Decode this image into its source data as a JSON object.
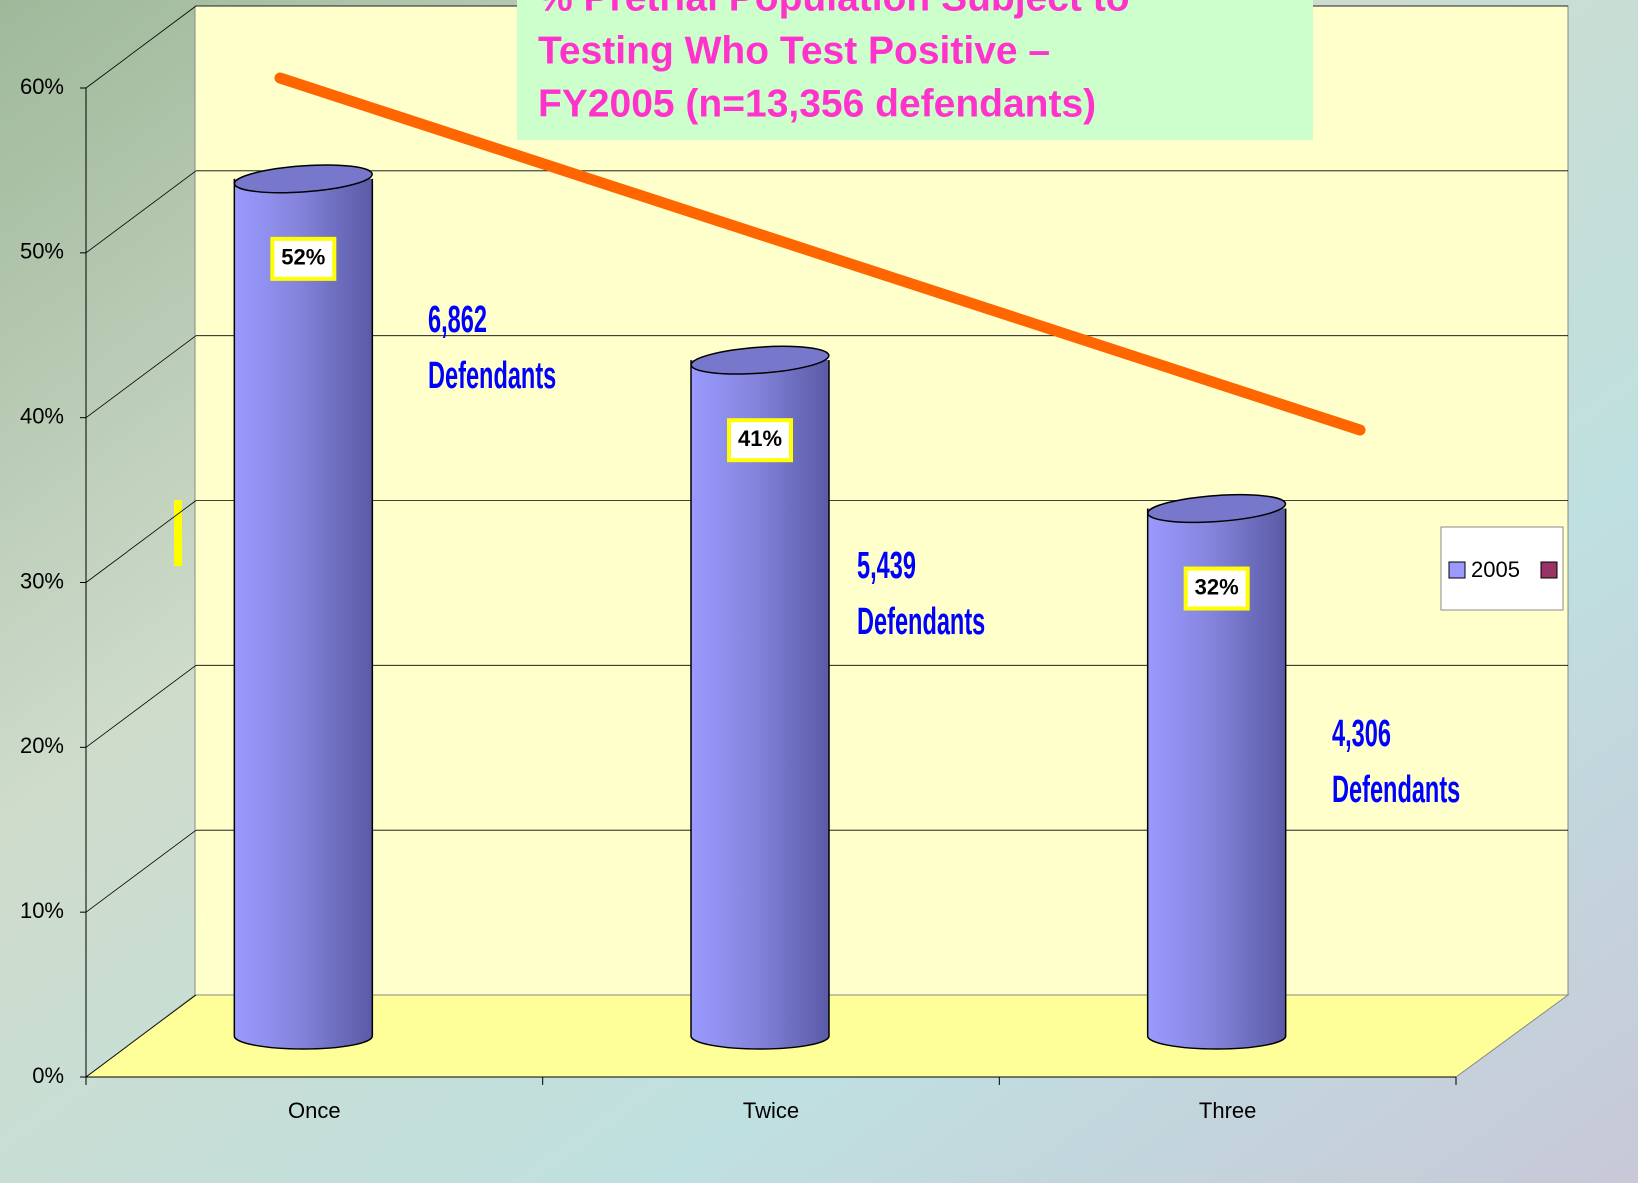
{
  "chart_data": {
    "type": "bar",
    "title": [
      "% Pretrial Population Subject to",
      "Testing Who Test Positive –",
      "FY2005 (n=13,356 defendants)"
    ],
    "categories": [
      "Once",
      "Twice",
      "Three"
    ],
    "series": [
      {
        "name": "2005",
        "color": "#9999ff",
        "values": [
          52,
          41,
          32
        ],
        "value_labels": [
          "52%",
          "41%",
          "32%"
        ]
      }
    ],
    "ylim": [
      0,
      60
    ],
    "yticks": [
      {
        "value": 0,
        "label": "0%"
      },
      {
        "value": 10,
        "label": "10%"
      },
      {
        "value": 20,
        "label": "20%"
      },
      {
        "value": 30,
        "label": "30%"
      },
      {
        "value": 40,
        "label": "40%"
      },
      {
        "value": 50,
        "label": "50%"
      },
      {
        "value": 60,
        "label": "60%"
      }
    ],
    "grid": true,
    "legend": "right",
    "annotations": [
      [
        "6,862",
        "Defendants"
      ],
      [
        "5,439",
        "Defendants"
      ],
      [
        "4,306",
        "Defendants"
      ]
    ]
  }
}
